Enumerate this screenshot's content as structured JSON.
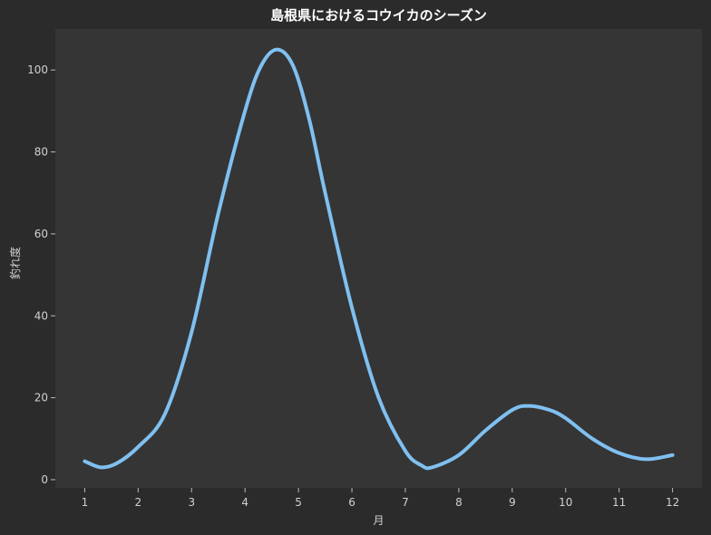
{
  "chart_data": {
    "type": "line",
    "title": "島根県におけるコウイカのシーズン",
    "xlabel": "月",
    "ylabel": "釣れ度",
    "x": [
      1,
      1.3,
      1.6,
      2,
      2.5,
      3,
      3.5,
      4,
      4.3,
      4.6,
      4.9,
      5.2,
      5.5,
      6,
      6.5,
      7,
      7.3,
      7.5,
      8,
      8.5,
      9,
      9.3,
      9.7,
      10,
      10.5,
      11,
      11.5,
      12
    ],
    "series": [
      {
        "values": [
          4.5,
          3.0,
          4.0,
          8.0,
          16.0,
          36.0,
          65.0,
          90.0,
          101.0,
          105.0,
          101.0,
          88.0,
          70.0,
          42.0,
          20.0,
          7.0,
          3.5,
          3.0,
          6.0,
          12.0,
          17.0,
          18.0,
          17.0,
          15.0,
          10.0,
          6.5,
          5.0,
          6.0
        ],
        "color": "#7fc0f0"
      }
    ],
    "xticks": [
      1,
      2,
      3,
      4,
      5,
      6,
      7,
      8,
      9,
      10,
      11,
      12
    ],
    "yticks": [
      0,
      20,
      40,
      60,
      80,
      100
    ],
    "xlim": [
      0.45,
      12.55
    ],
    "ylim": [
      -2,
      110
    ],
    "grid": false,
    "background": "#353535",
    "page_background": "#2b2b2b"
  }
}
